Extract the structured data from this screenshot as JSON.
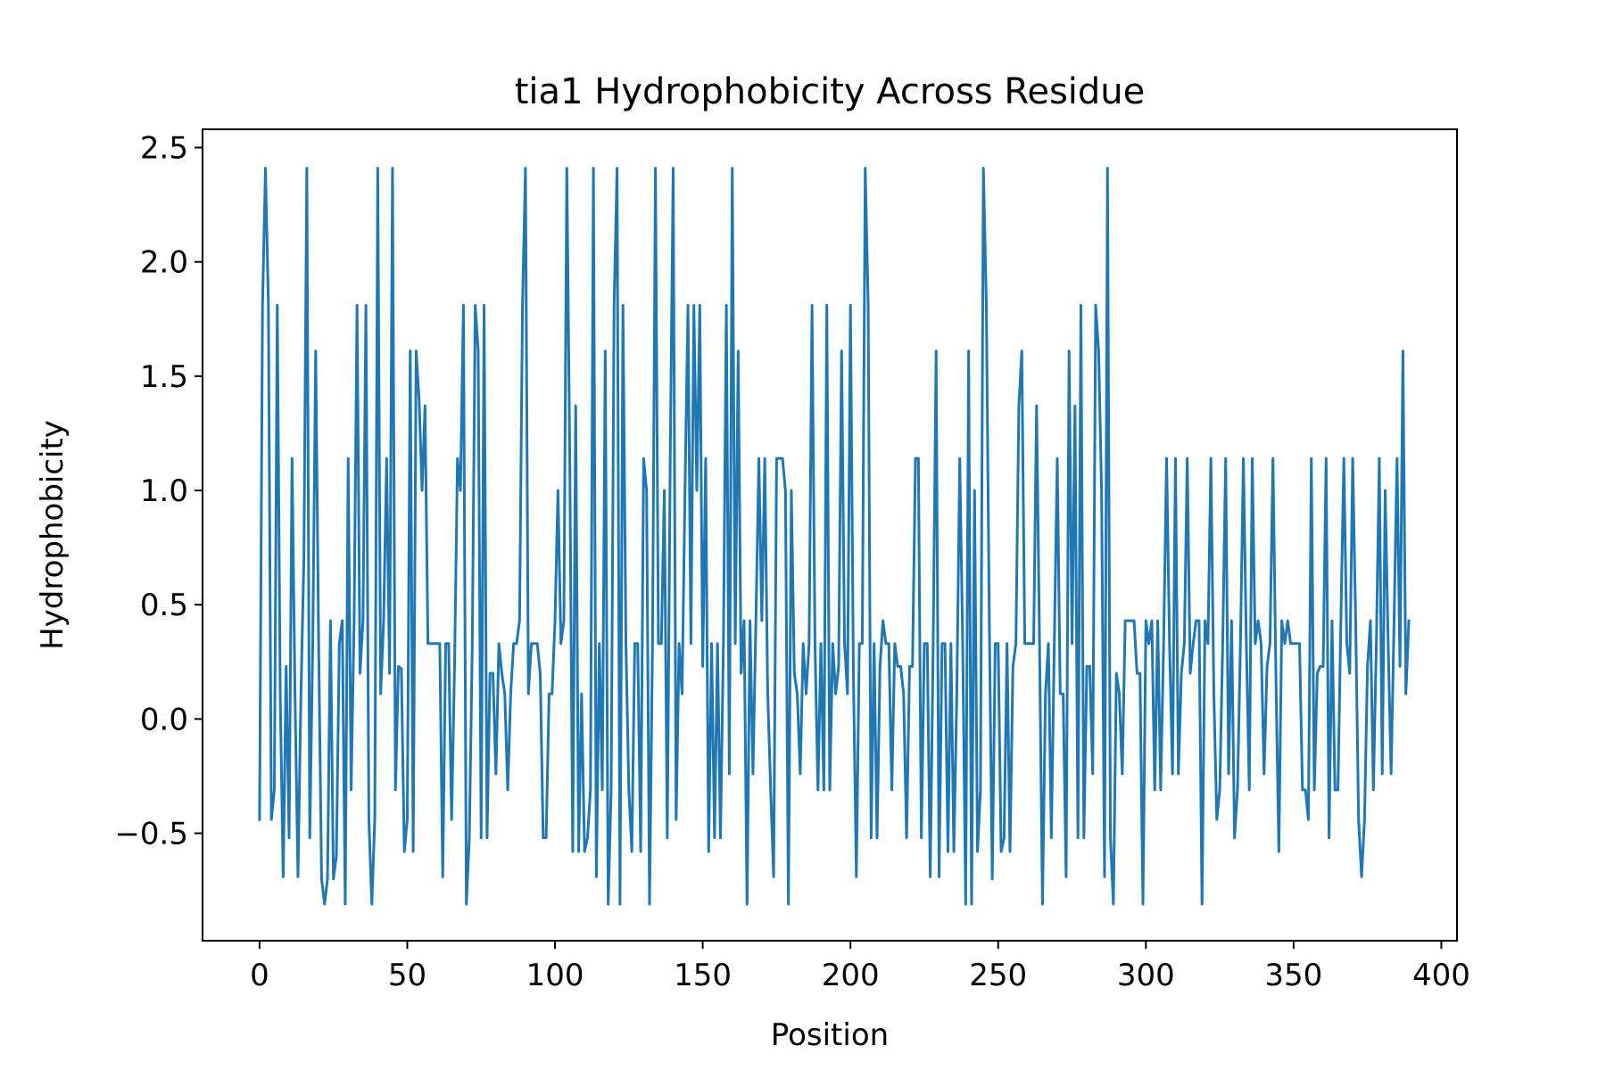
{
  "chart_data": {
    "type": "line",
    "title": "tia1 Hydrophobicity Across Residue",
    "xlabel": "Position",
    "ylabel": "Hydrophobicity",
    "xlim": [
      -19.3,
      405.3
    ],
    "ylim": [
      -0.97,
      2.58
    ],
    "xticks": [
      0,
      50,
      100,
      150,
      200,
      250,
      300,
      350,
      400
    ],
    "yticks": [
      -0.5,
      0.0,
      0.5,
      1.0,
      1.5,
      2.0,
      2.5
    ],
    "ytick_labels": [
      "−0.5",
      "0.0",
      "0.5",
      "1.0",
      "1.5",
      "2.0",
      "2.5"
    ],
    "grid": false,
    "legend": "none",
    "color": "#1f77b4",
    "series": [
      {
        "x_start": 0,
        "values": [
          -0.44,
          1.81,
          2.41,
          1.81,
          -0.44,
          -0.31,
          1.81,
          0.1,
          -0.69,
          0.23,
          -0.52,
          1.14,
          0.1,
          -0.69,
          0.1,
          0.7,
          2.41,
          -0.52,
          0.33,
          1.61,
          0.33,
          -0.7,
          -0.81,
          -0.7,
          0.43,
          -0.7,
          -0.6,
          0.33,
          0.43,
          -0.81,
          1.14,
          -0.31,
          0.43,
          1.81,
          0.2,
          0.43,
          1.81,
          -0.44,
          -0.81,
          -0.44,
          2.41,
          0.11,
          0.43,
          1.14,
          0.2,
          2.41,
          -0.31,
          0.23,
          0.22,
          -0.58,
          -0.44,
          1.61,
          -0.58,
          1.61,
          1.4,
          1.0,
          1.37,
          0.33,
          0.33,
          0.33,
          0.33,
          0.33,
          -0.69,
          0.33,
          0.33,
          -0.44,
          0.23,
          1.14,
          1.0,
          1.81,
          -0.81,
          -0.52,
          0.33,
          1.81,
          1.61,
          -0.52,
          1.81,
          -0.52,
          0.2,
          0.2,
          -0.24,
          0.33,
          0.2,
          0.11,
          -0.31,
          0.11,
          0.33,
          0.33,
          0.43,
          1.81,
          2.41,
          0.11,
          0.33,
          0.33,
          0.33,
          0.2,
          -0.52,
          -0.52,
          0.11,
          0.11,
          0.43,
          1.0,
          0.33,
          0.43,
          2.41,
          1.14,
          -0.58,
          1.37,
          -0.58,
          0.11,
          -0.58,
          -0.52,
          -0.31,
          2.41,
          -0.69,
          0.33,
          -0.31,
          1.61,
          -0.81,
          -0.31,
          1.81,
          2.41,
          -0.81,
          1.81,
          0.33,
          -0.31,
          -0.58,
          0.33,
          0.33,
          -0.58,
          1.14,
          1.0,
          -0.81,
          0.33,
          2.41,
          0.33,
          0.33,
          1.0,
          -0.52,
          1.14,
          2.41,
          -0.44,
          0.33,
          0.11,
          1.0,
          1.81,
          0.33,
          1.81,
          1.0,
          1.81,
          0.23,
          1.14,
          -0.58,
          0.33,
          -0.52,
          0.33,
          -0.52,
          0.33,
          1.81,
          -0.24,
          2.41,
          0.33,
          1.61,
          0.2,
          0.43,
          -0.81,
          0.43,
          -0.24,
          0.43,
          1.14,
          0.43,
          1.14,
          0.11,
          -0.31,
          -0.69,
          1.14,
          1.14,
          1.14,
          1.0,
          -0.81,
          1.0,
          0.2,
          0.11,
          -0.24,
          0.33,
          0.11,
          0.33,
          1.81,
          0.33,
          -0.31,
          0.33,
          -0.31,
          1.81,
          -0.31,
          0.33,
          0.11,
          0.23,
          1.61,
          0.33,
          0.11,
          1.81,
          0.2,
          -0.69,
          0.33,
          0.33,
          2.41,
          1.81,
          -0.52,
          0.33,
          -0.52,
          0.23,
          0.43,
          0.33,
          0.33,
          -0.31,
          0.33,
          0.23,
          0.23,
          0.11,
          -0.52,
          0.23,
          0.23,
          1.14,
          1.14,
          -0.52,
          0.33,
          0.33,
          -0.69,
          0.33,
          1.61,
          -0.69,
          0.33,
          0.33,
          -0.58,
          0.33,
          -0.58,
          0.11,
          1.14,
          0.33,
          -0.81,
          1.61,
          -0.81,
          1.0,
          -0.58,
          -0.31,
          2.41,
          1.81,
          0.43,
          -0.7,
          0.33,
          0.33,
          -0.58,
          -0.52,
          0.33,
          -0.58,
          0.23,
          0.33,
          1.37,
          1.61,
          0.33,
          0.33,
          0.33,
          0.33,
          1.37,
          0.33,
          -0.81,
          0.11,
          0.33,
          -0.52,
          0.33,
          1.14,
          0.11,
          0.11,
          -0.69,
          1.61,
          0.33,
          1.37,
          -0.52,
          1.81,
          -0.52,
          0.23,
          0.23,
          -0.24,
          1.81,
          1.61,
          1.0,
          -0.69,
          2.41,
          -0.52,
          -0.81,
          0.2,
          0.11,
          -0.24,
          0.43,
          0.43,
          0.43,
          0.43,
          0.2,
          0.2,
          -0.81,
          0.43,
          0.33,
          0.43,
          -0.31,
          0.43,
          -0.31,
          0.33,
          1.14,
          0.33,
          -0.24,
          1.14,
          -0.24,
          0.2,
          0.33,
          1.14,
          0.2,
          0.33,
          0.43,
          0.43,
          -0.81,
          0.43,
          0.33,
          1.14,
          0.11,
          -0.44,
          -0.31,
          0.33,
          1.14,
          -0.24,
          0.43,
          -0.52,
          -0.31,
          0.33,
          1.14,
          0.33,
          -0.31,
          1.14,
          0.33,
          0.43,
          0.33,
          -0.24,
          0.23,
          0.33,
          1.14,
          0.2,
          -0.58,
          0.43,
          0.33,
          0.43,
          0.33,
          0.33,
          0.33,
          0.33,
          -0.31,
          -0.31,
          -0.44,
          1.14,
          -0.31,
          0.2,
          0.23,
          0.23,
          1.14,
          -0.52,
          0.43,
          -0.31,
          -0.31,
          0.43,
          1.14,
          0.33,
          0.2,
          1.14,
          0.43,
          -0.44,
          -0.69,
          -0.44,
          0.23,
          0.43,
          -0.31,
          0.33,
          1.14,
          -0.24,
          1.0,
          0.33,
          -0.24,
          0.43,
          1.14,
          0.23,
          1.61,
          0.11,
          0.43
        ]
      }
    ]
  }
}
